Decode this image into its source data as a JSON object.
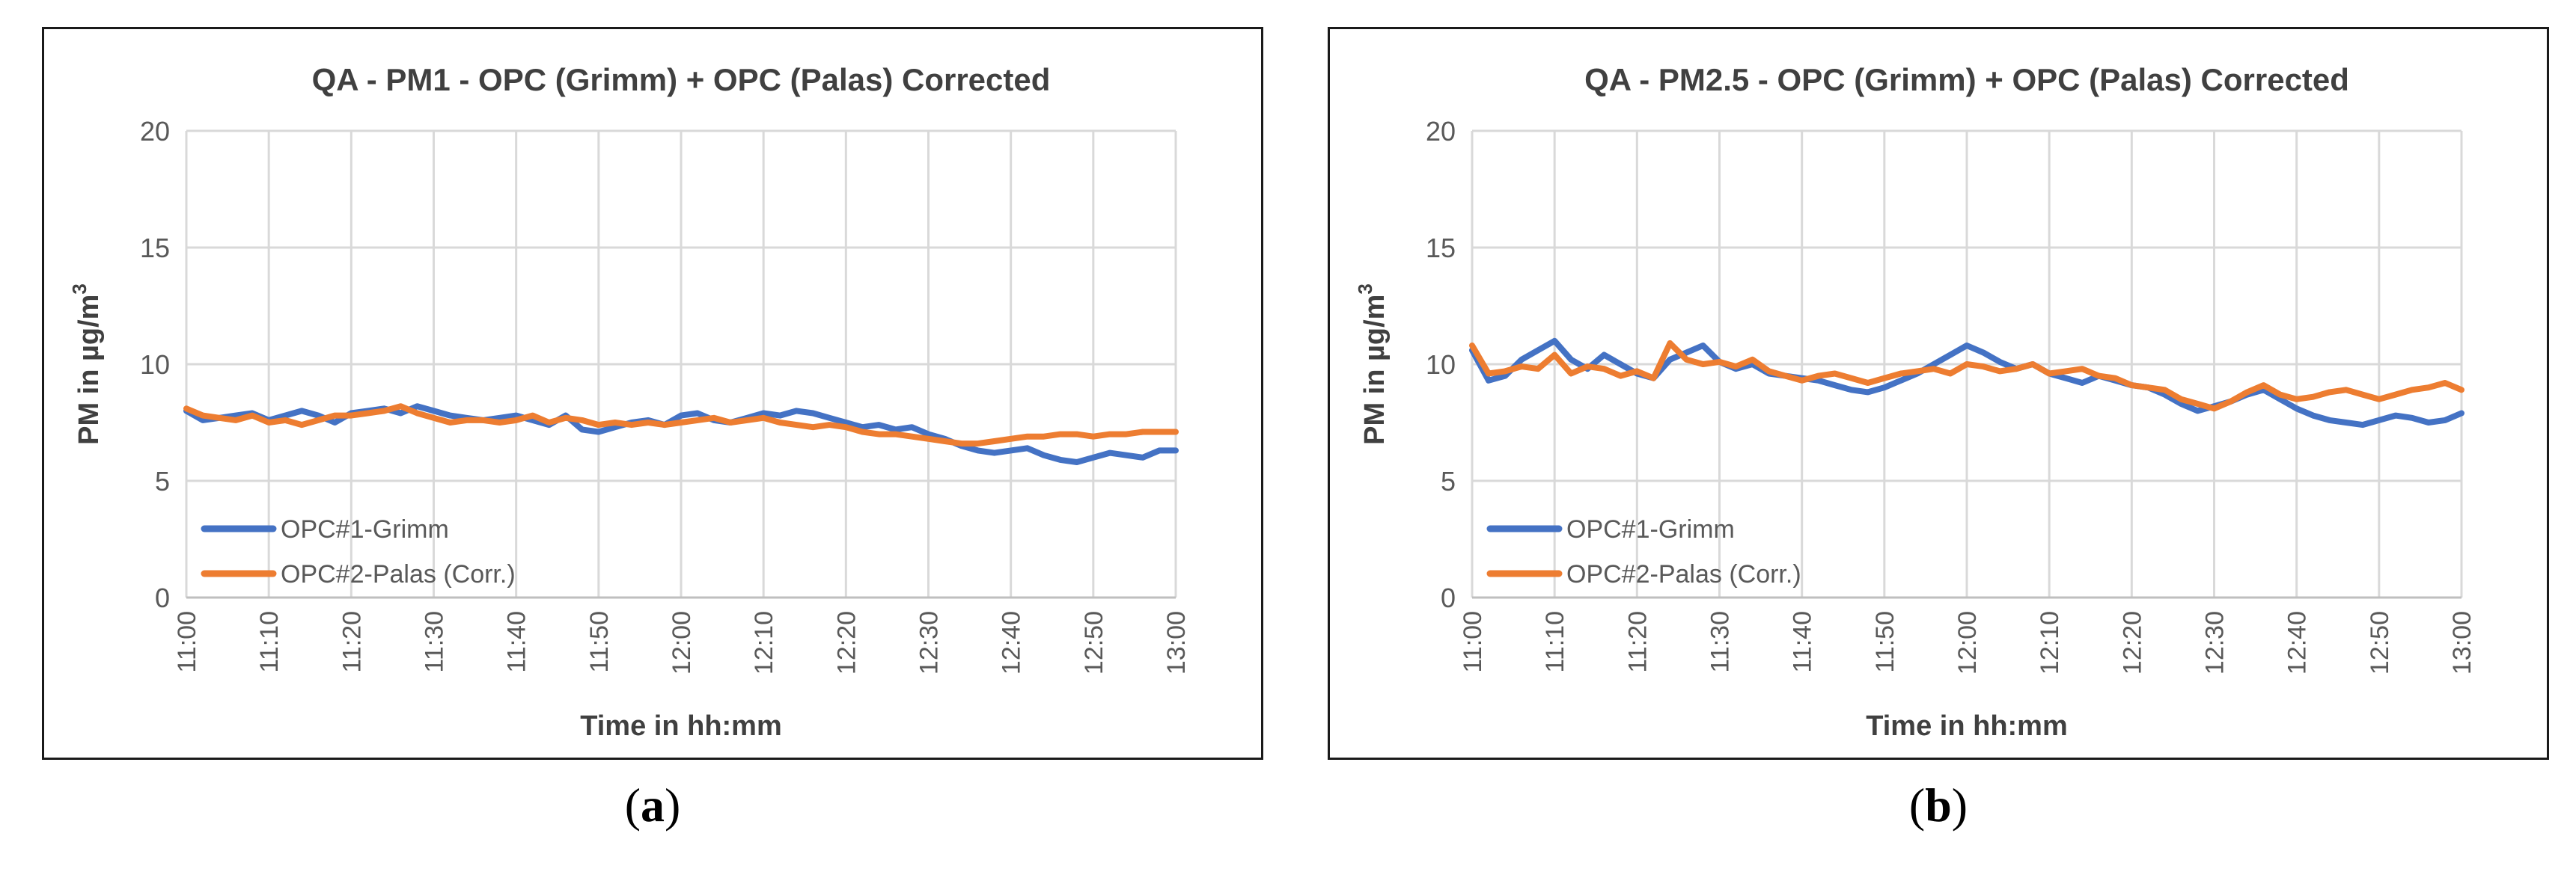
{
  "captions": {
    "a_open": "(",
    "a_letter": "a",
    "a_close": ")",
    "b_open": "(",
    "b_letter": "b",
    "b_close": ")"
  },
  "chart_data": [
    {
      "type": "line",
      "title": "QA - PM1 - OPC (Grimm) + OPC (Palas) Corrected",
      "xlabel": "Time in hh:mm",
      "ylabel": "PM in µg/m³",
      "ylabel_main": "PM in µg/m",
      "ylabel_sup": "3",
      "ylim": [
        0,
        20
      ],
      "yticks": [
        0,
        5,
        10,
        15,
        20
      ],
      "xlim_minutes": [
        0,
        120
      ],
      "xtick_labels": [
        "11:00",
        "11:10",
        "11:20",
        "11:30",
        "11:40",
        "11:50",
        "12:00",
        "12:10",
        "12:20",
        "12:30",
        "12:40",
        "12:50",
        "13:00"
      ],
      "grid": true,
      "legend_position": "bottom-left",
      "series": [
        {
          "name": "OPC#1-Grimm",
          "color": "#4472C4",
          "x_start_minute": 0,
          "x_step_minutes": 2,
          "values": [
            8.0,
            7.6,
            7.7,
            7.8,
            7.9,
            7.6,
            7.8,
            8.0,
            7.8,
            7.5,
            7.9,
            8.0,
            8.1,
            7.9,
            8.2,
            8.0,
            7.8,
            7.7,
            7.6,
            7.7,
            7.8,
            7.6,
            7.4,
            7.8,
            7.2,
            7.1,
            7.3,
            7.5,
            7.6,
            7.4,
            7.8,
            7.9,
            7.6,
            7.5,
            7.7,
            7.9,
            7.8,
            8.0,
            7.9,
            7.7,
            7.5,
            7.3,
            7.4,
            7.2,
            7.3,
            7.0,
            6.8,
            6.5,
            6.3,
            6.2,
            6.3,
            6.4,
            6.1,
            5.9,
            5.8,
            6.0,
            6.2,
            6.1,
            6.0,
            6.3,
            6.3
          ]
        },
        {
          "name": "OPC#2-Palas (Corr.)",
          "color": "#ED7D31",
          "x_start_minute": 0,
          "x_step_minutes": 2,
          "values": [
            8.1,
            7.8,
            7.7,
            7.6,
            7.8,
            7.5,
            7.6,
            7.4,
            7.6,
            7.8,
            7.8,
            7.9,
            8.0,
            8.2,
            7.9,
            7.7,
            7.5,
            7.6,
            7.6,
            7.5,
            7.6,
            7.8,
            7.5,
            7.7,
            7.6,
            7.4,
            7.5,
            7.4,
            7.5,
            7.4,
            7.5,
            7.6,
            7.7,
            7.5,
            7.6,
            7.7,
            7.5,
            7.4,
            7.3,
            7.4,
            7.3,
            7.1,
            7.0,
            7.0,
            6.9,
            6.8,
            6.7,
            6.6,
            6.6,
            6.7,
            6.8,
            6.9,
            6.9,
            7.0,
            7.0,
            6.9,
            7.0,
            7.0,
            7.1,
            7.1,
            7.1
          ]
        }
      ]
    },
    {
      "type": "line",
      "title": "QA - PM2.5 - OPC (Grimm) + OPC (Palas) Corrected",
      "xlabel": "Time in hh:mm",
      "ylabel": "PM in µg/m³",
      "ylabel_main": "PM in µg/m",
      "ylabel_sup": "3",
      "ylim": [
        0,
        20
      ],
      "yticks": [
        0,
        5,
        10,
        15,
        20
      ],
      "xlim_minutes": [
        0,
        120
      ],
      "xtick_labels": [
        "11:00",
        "11:10",
        "11:20",
        "11:30",
        "11:40",
        "11:50",
        "12:00",
        "12:10",
        "12:20",
        "12:30",
        "12:40",
        "12:50",
        "13:00"
      ],
      "grid": true,
      "legend_position": "bottom-left",
      "series": [
        {
          "name": "OPC#1-Grimm",
          "color": "#4472C4",
          "x_start_minute": 0,
          "x_step_minutes": 2,
          "values": [
            10.6,
            9.3,
            9.5,
            10.2,
            10.6,
            11.0,
            10.2,
            9.8,
            10.4,
            10.0,
            9.6,
            9.4,
            10.2,
            10.5,
            10.8,
            10.1,
            9.8,
            10.0,
            9.6,
            9.5,
            9.4,
            9.3,
            9.1,
            8.9,
            8.8,
            9.0,
            9.3,
            9.6,
            10.0,
            10.4,
            10.8,
            10.5,
            10.1,
            9.8,
            10.0,
            9.6,
            9.4,
            9.2,
            9.5,
            9.3,
            9.1,
            9.0,
            8.7,
            8.3,
            8.0,
            8.2,
            8.4,
            8.7,
            8.9,
            8.5,
            8.1,
            7.8,
            7.6,
            7.5,
            7.4,
            7.6,
            7.8,
            7.7,
            7.5,
            7.6,
            7.9
          ]
        },
        {
          "name": "OPC#2-Palas (Corr.)",
          "color": "#ED7D31",
          "x_start_minute": 0,
          "x_step_minutes": 2,
          "values": [
            10.8,
            9.6,
            9.7,
            9.9,
            9.8,
            10.4,
            9.6,
            9.9,
            9.8,
            9.5,
            9.7,
            9.4,
            10.9,
            10.2,
            10.0,
            10.1,
            9.9,
            10.2,
            9.7,
            9.5,
            9.3,
            9.5,
            9.6,
            9.4,
            9.2,
            9.4,
            9.6,
            9.7,
            9.8,
            9.6,
            10.0,
            9.9,
            9.7,
            9.8,
            10.0,
            9.6,
            9.7,
            9.8,
            9.5,
            9.4,
            9.1,
            9.0,
            8.9,
            8.5,
            8.3,
            8.1,
            8.4,
            8.8,
            9.1,
            8.7,
            8.5,
            8.6,
            8.8,
            8.9,
            8.7,
            8.5,
            8.7,
            8.9,
            9.0,
            9.2,
            8.9
          ]
        }
      ]
    }
  ]
}
